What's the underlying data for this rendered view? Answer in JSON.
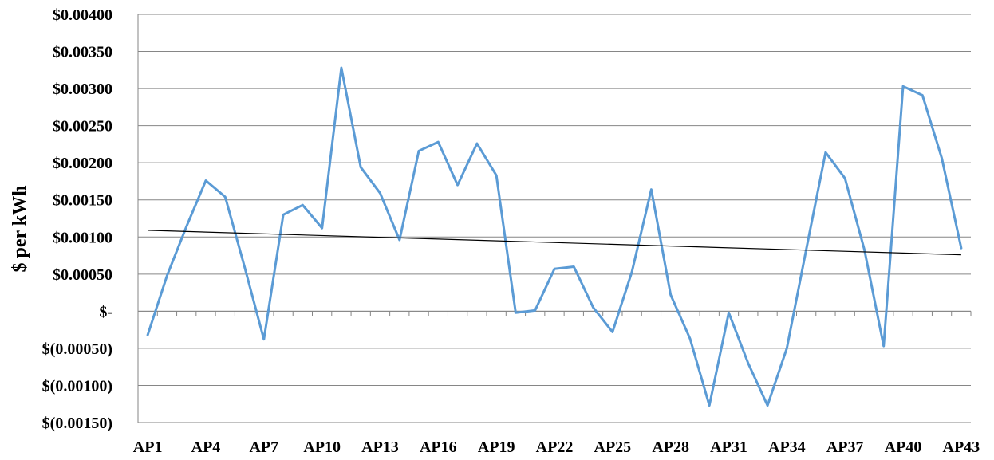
{
  "chart_data": {
    "type": "line",
    "title": "",
    "xlabel": "",
    "ylabel": "$ per kWh",
    "ylim": [
      -0.0015,
      0.004
    ],
    "grid": "horizontal",
    "legend": "none",
    "x": [
      "AP1",
      "AP2",
      "AP3",
      "AP4",
      "AP5",
      "AP6",
      "AP7",
      "AP8",
      "AP9",
      "AP10",
      "AP11",
      "AP12",
      "AP13",
      "AP14",
      "AP15",
      "AP16",
      "AP17",
      "AP18",
      "AP19",
      "AP20",
      "AP21",
      "AP22",
      "AP23",
      "AP24",
      "AP25",
      "AP26",
      "AP27",
      "AP28",
      "AP29",
      "AP30",
      "AP31",
      "AP32",
      "AP33",
      "AP34",
      "AP35",
      "AP36",
      "AP37",
      "AP38",
      "AP39",
      "AP40",
      "AP41",
      "AP42",
      "AP43"
    ],
    "x_tick_labels": [
      "AP1",
      "AP4",
      "AP7",
      "AP10",
      "AP13",
      "AP16",
      "AP19",
      "AP22",
      "AP25",
      "AP28",
      "AP31",
      "AP34",
      "AP37",
      "AP40",
      "AP43"
    ],
    "y_tick_labels": [
      {
        "value": 0.004,
        "label": "$0.00400"
      },
      {
        "value": 0.0035,
        "label": "$0.00350"
      },
      {
        "value": 0.003,
        "label": "$0.00300"
      },
      {
        "value": 0.0025,
        "label": "$0.00250"
      },
      {
        "value": 0.002,
        "label": "$0.00200"
      },
      {
        "value": 0.0015,
        "label": "$0.00150"
      },
      {
        "value": 0.001,
        "label": "$0.00100"
      },
      {
        "value": 0.0005,
        "label": "$0.00050"
      },
      {
        "value": 0.0,
        "label": "$-"
      },
      {
        "value": -0.0005,
        "label": "$(0.00050)"
      },
      {
        "value": -0.001,
        "label": "$(0.00100)"
      },
      {
        "value": -0.0015,
        "label": "$(0.00150)"
      }
    ],
    "series": [
      {
        "color": "#5b9bd5",
        "values": [
          -0.00032,
          0.00048,
          0.00114,
          0.00176,
          0.00154,
          0.0006,
          -0.00038,
          0.0013,
          0.00143,
          0.00112,
          0.00328,
          0.00194,
          0.00159,
          0.00096,
          0.00216,
          0.00228,
          0.0017,
          0.00226,
          0.00183,
          -2e-05,
          1e-05,
          0.00057,
          0.0006,
          5e-05,
          -0.00028,
          0.00053,
          0.00164,
          0.00022,
          -0.00037,
          -0.00127,
          -2e-05,
          -0.0007,
          -0.00127,
          -0.0005,
          0.00083,
          0.00214,
          0.00179,
          0.00083,
          -0.00047,
          0.00303,
          0.00291,
          0.00206,
          0.00085
        ]
      }
    ],
    "trendline": {
      "color": "#000000",
      "start": 0.00109,
      "end": 0.00076
    }
  }
}
